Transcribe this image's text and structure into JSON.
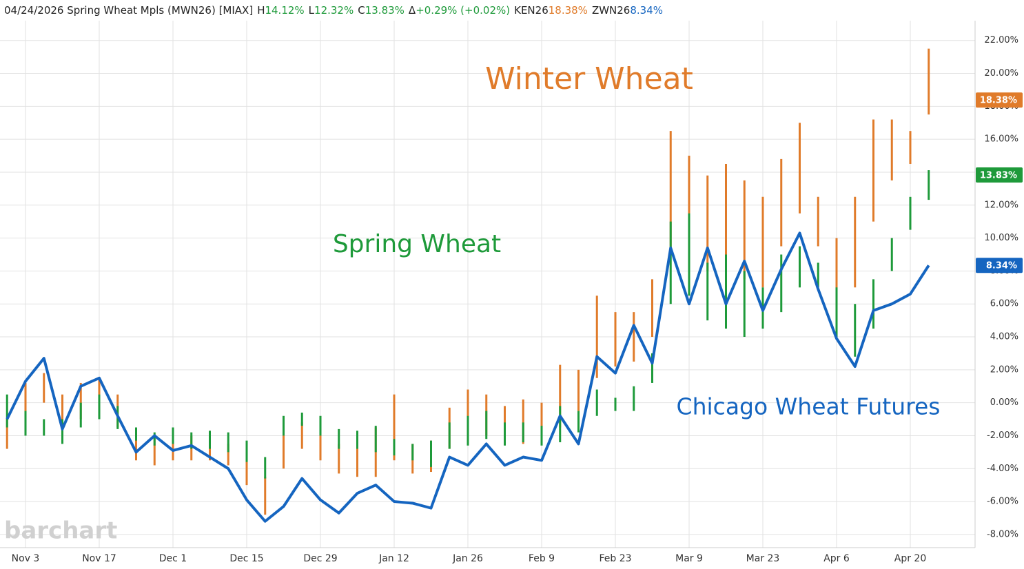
{
  "chart_data": {
    "type": "ohlc-line",
    "header": [
      {
        "text": "04/24/2026 Spring Wheat Mpls (MWN26) [MIAX]",
        "color": "#222222"
      },
      {
        "text": "H",
        "color": "#222222"
      },
      {
        "text": "14.12%",
        "color": "#1e9a3a"
      },
      {
        "text": "L",
        "color": "#222222"
      },
      {
        "text": "12.32%",
        "color": "#1e9a3a"
      },
      {
        "text": "C",
        "color": "#222222"
      },
      {
        "text": "13.83%",
        "color": "#1e9a3a"
      },
      {
        "text": "Δ",
        "color": "#222222"
      },
      {
        "text": "+0.29% (+0.02%)",
        "color": "#1e9a3a"
      },
      {
        "text": "KEN26",
        "color": "#222222"
      },
      {
        "text": "18.38%",
        "color": "#e07b2a"
      },
      {
        "text": "ZWN26",
        "color": "#222222"
      },
      {
        "text": "8.34%",
        "color": "#1565c0"
      }
    ],
    "watermark": "barchart",
    "categories": [
      null,
      "Nov 3",
      null,
      null,
      null,
      "Nov 17",
      null,
      null,
      null,
      "Dec 1",
      null,
      null,
      null,
      "Dec 15",
      null,
      null,
      null,
      "Dec 29",
      null,
      null,
      null,
      "Jan 12",
      null,
      null,
      null,
      "Jan 26",
      null,
      null,
      null,
      "Feb 9",
      null,
      null,
      null,
      "Feb 23",
      null,
      null,
      null,
      "Mar 9",
      null,
      null,
      null,
      "Mar 23",
      null,
      null,
      null,
      "Apr 6",
      null,
      null,
      null,
      "Apr 20",
      null
    ],
    "ylim": [
      -8.8,
      23.2
    ],
    "yticks": [
      {
        "value": 22,
        "label": "22.00%"
      },
      {
        "value": 20,
        "label": "20.00%"
      },
      {
        "value": 18,
        "label": "18.00%"
      },
      {
        "value": 16,
        "label": "16.00%"
      },
      {
        "value": 14,
        "label": "14.00%"
      },
      {
        "value": 12,
        "label": "12.00%"
      },
      {
        "value": 10,
        "label": "10.00%"
      },
      {
        "value": 8,
        "label": "8.00%"
      },
      {
        "value": 6,
        "label": "6.00%"
      },
      {
        "value": 4,
        "label": "4.00%"
      },
      {
        "value": 2,
        "label": "2.00%"
      },
      {
        "value": 0,
        "label": "0.00%"
      },
      {
        "value": -2,
        "label": "-2.00%"
      },
      {
        "value": -4,
        "label": "-4.00%"
      },
      {
        "value": -6,
        "label": "-6.00%"
      },
      {
        "value": -8,
        "label": "-8.00%"
      }
    ],
    "grid": true,
    "series": [
      {
        "name": "Winter Wheat",
        "color": "#e07b2a",
        "type": "ohlc",
        "high": [
          -1,
          1.2,
          1.8,
          0.5,
          1.2,
          1.5,
          0.5,
          -1.5,
          -2,
          -2,
          -2,
          -2.3,
          -2.5,
          -3,
          -4.5,
          -1.8,
          -1.2,
          -1.5,
          -2.5,
          -2.5,
          -1.5,
          0.5,
          -2.5,
          -2.3,
          -0.3,
          0.8,
          0.5,
          -0.2,
          0.2,
          0,
          2.3,
          2,
          6.5,
          5.5,
          5.5,
          7.5,
          16.5,
          15,
          13.8,
          14.5,
          13.5,
          12.5,
          14.8,
          17,
          12.5,
          10,
          12.5,
          17.2,
          17.2,
          16.5,
          21.5
        ],
        "low": [
          -2.8,
          -1.5,
          0,
          -1.8,
          -1,
          -0.5,
          -1.5,
          -3.5,
          -3.8,
          -3.5,
          -3.5,
          -3.5,
          -3.8,
          -5,
          -6.8,
          -4,
          -2.8,
          -3.5,
          -4.3,
          -4.5,
          -4.5,
          -3.5,
          -4.3,
          -4.2,
          -2.8,
          -1.8,
          -2,
          -2.3,
          -2.5,
          -2,
          -1.5,
          -0.5,
          1.5,
          2.2,
          2.5,
          4,
          9,
          9,
          8,
          8.5,
          7.5,
          7,
          9.5,
          11.5,
          9.5,
          6,
          7,
          11,
          13.5,
          14.5,
          17.5
        ],
        "last": 18.38,
        "last_label": "18.38%"
      },
      {
        "name": "Spring Wheat",
        "color": "#1e9a3a",
        "type": "ohlc",
        "high": [
          0.5,
          -0.5,
          -1,
          -1,
          0,
          0.5,
          -0.2,
          -1.5,
          -1.8,
          -1.5,
          -1.8,
          -1.7,
          -1.8,
          -2.3,
          -3.3,
          -0.8,
          -0.6,
          -0.8,
          -1.6,
          -1.7,
          -1.4,
          -2.2,
          -2.5,
          -2.3,
          -1.2,
          -0.8,
          -0.5,
          -1.2,
          -1.2,
          -1.4,
          -0.2,
          -0.5,
          0.8,
          0.3,
          1,
          3,
          11,
          11.5,
          8.5,
          9,
          8,
          7,
          9,
          9.5,
          8.5,
          7,
          6,
          7.5,
          10,
          12.5,
          14.12
        ],
        "low": [
          -1.5,
          -2,
          -2,
          -2.5,
          -1.5,
          -1,
          -1.6,
          -2.3,
          -2.6,
          -2.5,
          -2.8,
          -2.8,
          -3,
          -3.6,
          -4.6,
          -2,
          -1.4,
          -2,
          -2.8,
          -2.8,
          -3,
          -3.2,
          -3.5,
          -3.9,
          -2.8,
          -2.6,
          -2.2,
          -2.6,
          -2.4,
          -2.6,
          -2.4,
          -1.8,
          -0.8,
          -0.5,
          -0.5,
          1.2,
          6,
          6.5,
          5,
          4.5,
          4,
          4.5,
          5.5,
          7,
          7,
          4,
          2.8,
          4.5,
          8,
          10.5,
          12.32
        ],
        "last": 13.83,
        "last_label": "13.83%"
      },
      {
        "name": "Chicago Wheat Futures",
        "color": "#1565c0",
        "type": "line",
        "values": [
          -1,
          1.3,
          2.7,
          -1.6,
          1,
          1.5,
          -0.8,
          -3,
          -2,
          -2.9,
          -2.6,
          -3.3,
          -4,
          -5.9,
          -7.2,
          -6.3,
          -4.6,
          -5.9,
          -6.7,
          -5.5,
          -5,
          -6,
          -6.1,
          -6.4,
          -3.3,
          -3.8,
          -2.5,
          -3.8,
          -3.3,
          -3.5,
          -0.8,
          -2.5,
          2.8,
          1.8,
          4.7,
          2.4,
          9.4,
          6,
          9.4,
          6,
          8.6,
          5.6,
          8.1,
          10.3,
          6.9,
          3.9,
          2.2,
          5.6,
          6,
          6.6,
          8.34
        ],
        "last": 8.34,
        "last_label": "8.34%"
      }
    ]
  }
}
